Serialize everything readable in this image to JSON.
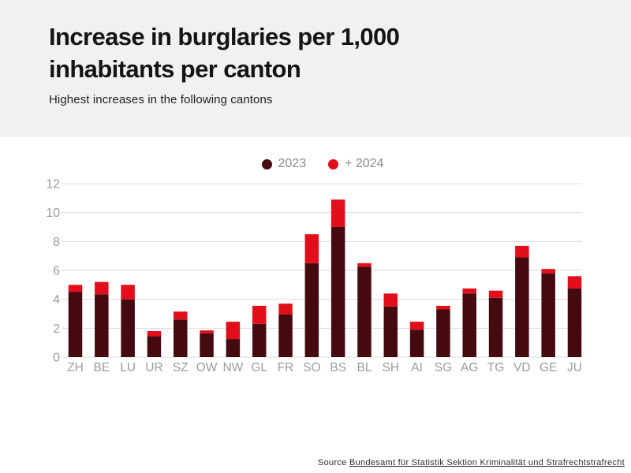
{
  "header": {
    "title": "Increase in burglaries per 1,000 inhabitants per canton",
    "subtitle": "Highest increases in the following cantons"
  },
  "legend": {
    "items": [
      {
        "label": "2023",
        "color": "#450a0f"
      },
      {
        "label": "+ 2024",
        "color": "#e30e1b"
      }
    ]
  },
  "chart_data": {
    "type": "bar",
    "subtype": "stacked-vertical",
    "title": "Increase in burglaries per 1,000 inhabitants per canton",
    "categories": [
      "ZH",
      "BE",
      "LU",
      "UR",
      "SZ",
      "OW",
      "NW",
      "GL",
      "FR",
      "SO",
      "BS",
      "BL",
      "SH",
      "AI",
      "SG",
      "AG",
      "TG",
      "VD",
      "GE",
      "JU"
    ],
    "series": [
      {
        "name": "2023",
        "color": "#450a0f",
        "values": [
          4.5,
          4.35,
          4.0,
          1.45,
          2.6,
          1.65,
          1.25,
          2.3,
          2.95,
          6.5,
          9.0,
          6.25,
          3.5,
          1.9,
          3.3,
          4.4,
          4.1,
          6.9,
          5.8,
          4.75
        ]
      },
      {
        "name": "+ 2024",
        "color": "#e30e1b",
        "values": [
          0.5,
          0.85,
          1.0,
          0.35,
          0.55,
          0.2,
          1.2,
          1.25,
          0.75,
          2.0,
          1.9,
          0.25,
          0.9,
          0.55,
          0.25,
          0.35,
          0.5,
          0.8,
          0.3,
          0.85
        ]
      }
    ],
    "stacked_totals": [
      5.0,
      5.2,
      5.0,
      1.8,
      3.15,
      1.85,
      2.45,
      3.55,
      3.7,
      8.5,
      10.9,
      6.5,
      4.4,
      2.45,
      3.55,
      4.75,
      4.6,
      7.7,
      6.1,
      5.6
    ],
    "xlabel": "",
    "ylabel": "",
    "y_ticks": [
      0,
      2,
      4,
      6,
      8,
      10,
      12
    ],
    "ylim": [
      0,
      12
    ],
    "grid": true,
    "legend_position": "top-center"
  },
  "source": {
    "prefix": "Source ",
    "link": "Bundesamt für Statistik Sektion Kriminalität und Strafrechtstrafrecht"
  },
  "colors": {
    "header_background": "#f1f1ef",
    "page_background": "#ffffff",
    "bar_2023": "#450a0f",
    "bar_2024": "#e30e1b",
    "gridline": "#dcdcdc",
    "axis_text": "#9b9b9b",
    "legend_text": "#8a8a8a",
    "title_text": "#141414",
    "source_text": "#2e2e2e"
  }
}
